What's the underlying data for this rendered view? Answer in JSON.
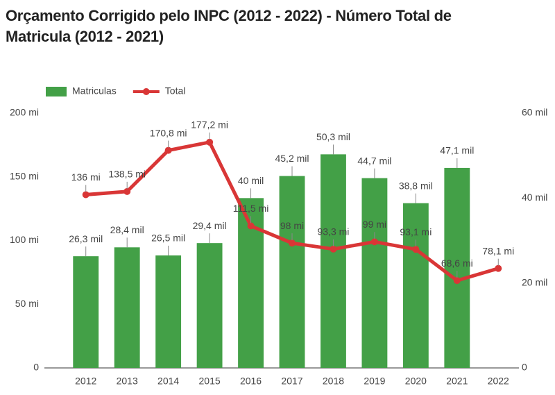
{
  "chart_data": {
    "type": "combo",
    "title": "Orçamento Corrigido pelo INPC (2012 - 2022) - Número Total de Matricula (2012 - 2021)",
    "categories": [
      "2012",
      "2013",
      "2014",
      "2015",
      "2016",
      "2017",
      "2018",
      "2019",
      "2020",
      "2021",
      "2022"
    ],
    "series": [
      {
        "name": "Matriculas",
        "type": "bar",
        "axis": "y2",
        "color": "#43a047",
        "values": [
          26300,
          28400,
          26500,
          29400,
          40000,
          45200,
          50300,
          44700,
          38800,
          47100,
          null
        ],
        "value_labels": [
          "26,3 mil",
          "28,4 mil",
          "26,5 mil",
          "29,4 mil",
          "40 mil",
          "45,2 mil",
          "50,3 mil",
          "44,7 mil",
          "38,8 mil",
          "47,1 mil",
          null
        ]
      },
      {
        "name": "Total",
        "type": "line",
        "axis": "y",
        "color": "#d93636",
        "values": [
          136000000,
          138500000,
          170800000,
          177200000,
          111500000,
          98000000,
          93300000,
          99000000,
          93100000,
          68600000,
          78100000
        ],
        "value_labels": [
          "136 mi",
          "138,5 mi",
          "170,8 mi",
          "177,2 mi",
          "111,5 mi",
          "98 mi",
          "93,3 mi",
          "99 mi",
          "93,1 mi",
          "68,6 mi",
          "78,1 mi"
        ]
      }
    ],
    "ylim": [
      0,
      200000000
    ],
    "yticks": [
      0,
      {
        "value": 50000000,
        "label": "50 mi"
      },
      {
        "value": 100000000,
        "label": "100 mi"
      },
      {
        "value": 150000000,
        "label": "150 mi"
      },
      {
        "value": 200000000,
        "label": "200 mi"
      }
    ],
    "y2lim": [
      0,
      60000
    ],
    "y2ticks": [
      0,
      {
        "value": 20000,
        "label": "20 mil"
      },
      {
        "value": 40000,
        "label": "40 mil"
      },
      {
        "value": 60000,
        "label": "60 mil"
      }
    ],
    "grid": false,
    "legend": "top-left"
  }
}
